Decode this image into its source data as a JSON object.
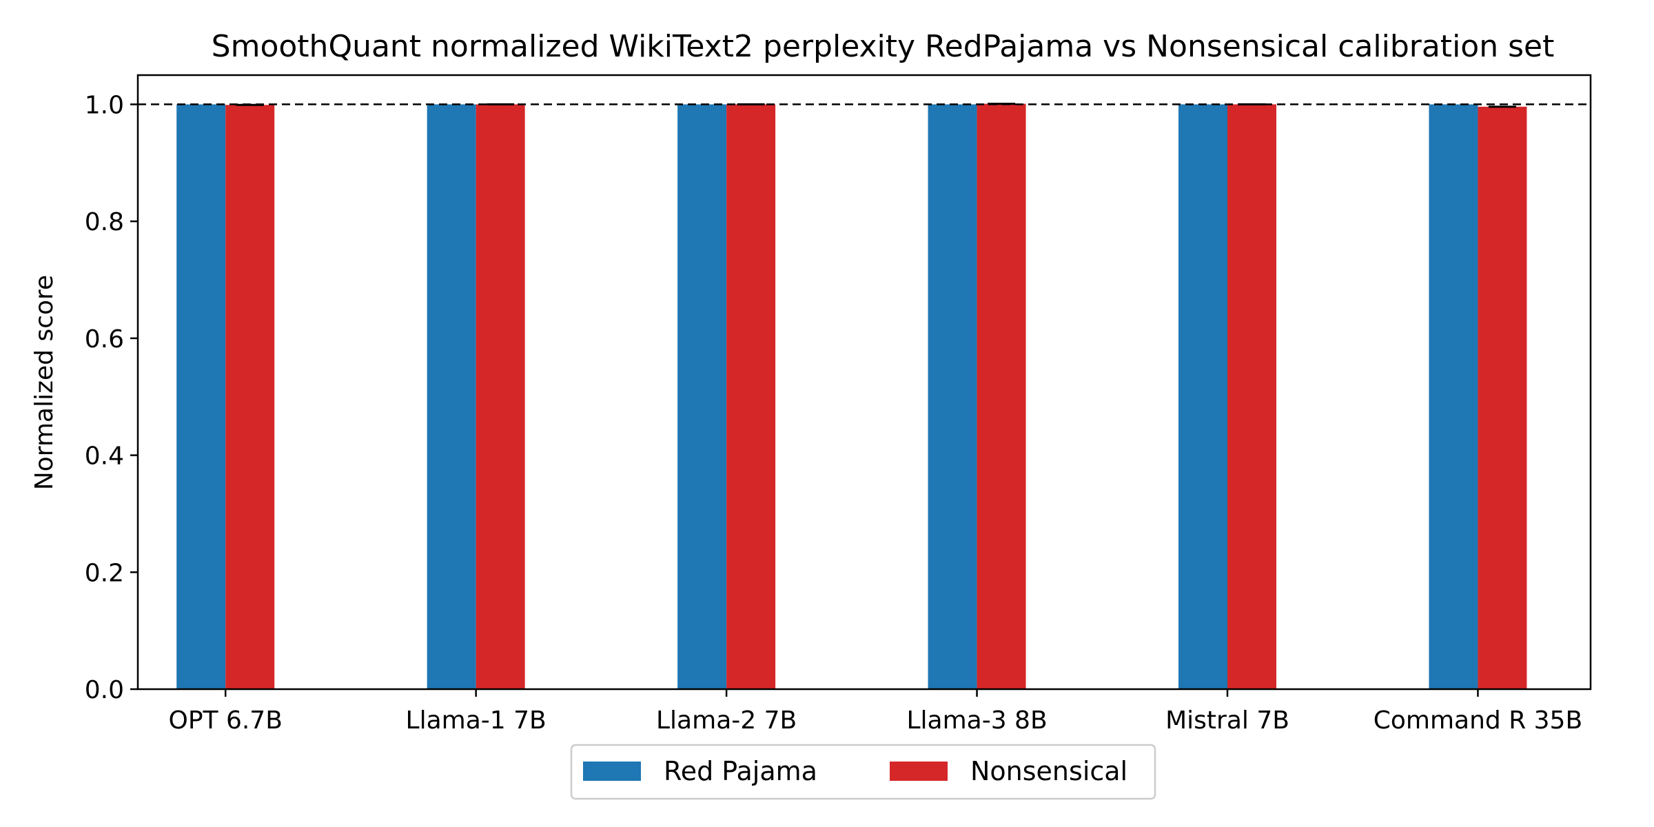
{
  "chart_data": {
    "type": "bar",
    "title": "SmoothQuant normalized WikiText2 perplexity RedPajama vs Nonsensical calibration set",
    "xlabel": "",
    "ylabel": "Normalized score",
    "ylim": [
      0.0,
      1.05
    ],
    "yticks": [
      "0.0",
      "0.2",
      "0.4",
      "0.6",
      "0.8",
      "1.0"
    ],
    "categories": [
      "OPT 6.7B",
      "Llama-1 7B",
      "Llama-2 7B",
      "Llama-3 8B",
      "Mistral 7B",
      "Command R 35B"
    ],
    "series": [
      {
        "name": "Red Pajama",
        "color": "#1f77b4",
        "values": [
          1.0,
          1.0,
          1.0,
          1.0,
          1.0,
          1.0
        ]
      },
      {
        "name": "Nonsensical",
        "color": "#d62728",
        "values": [
          0.999,
          1.0,
          1.0,
          1.001,
          1.0,
          0.996
        ]
      }
    ],
    "reference_line": {
      "y": 1.0,
      "style": "dashed"
    },
    "grid": false,
    "legend_position": "bottom-center"
  }
}
